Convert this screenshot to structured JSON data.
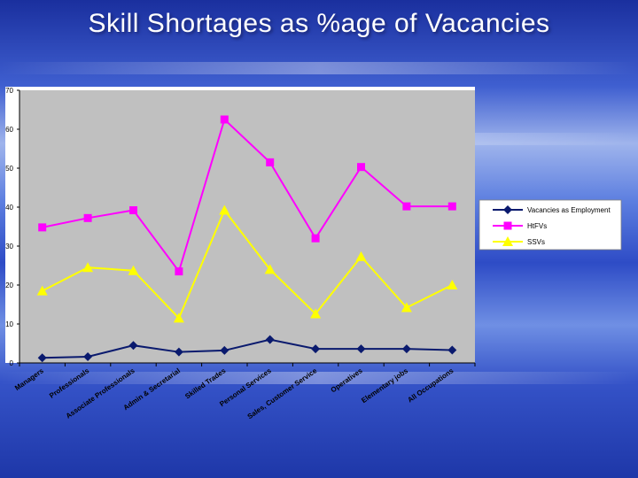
{
  "title": "Skill Shortages as %age of Vacancies",
  "chart_data": {
    "type": "line",
    "categories": [
      "Managers",
      "Professionals",
      "Associate Professionals",
      "Admin & Secretarial",
      "Skilled Trades",
      "Personal Services",
      "Sales, Customer Service",
      "Operatives",
      "Elementary jobs",
      "All Occupations"
    ],
    "series": [
      {
        "name": "Vacancies as Employment",
        "color": "#0a1a6e",
        "marker": "diamond",
        "values": [
          1.3,
          1.6,
          4.5,
          2.8,
          3.2,
          6.0,
          3.6,
          3.6,
          3.6,
          3.3
        ]
      },
      {
        "name": "HtFVs",
        "color": "#ff00ff",
        "marker": "square",
        "values": [
          34.8,
          37.2,
          39.2,
          23.5,
          62.5,
          51.5,
          32.0,
          50.3,
          40.2,
          40.2
        ]
      },
      {
        "name": "SSVs",
        "color": "#ffff00",
        "marker": "triangle",
        "values": [
          18.5,
          24.5,
          23.7,
          11.5,
          39.2,
          24.0,
          12.6,
          27.3,
          14.2,
          20.0
        ]
      }
    ],
    "ylim": [
      0,
      70
    ],
    "yticks": [
      "0",
      "10",
      "20",
      "30",
      "40",
      "50",
      "60",
      "70"
    ],
    "grid": false,
    "legend": "right",
    "plot_background": "#c0c0c0"
  }
}
